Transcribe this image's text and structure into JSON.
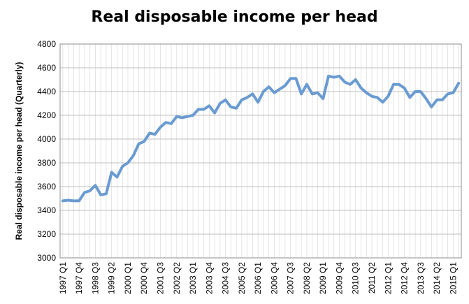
{
  "chart_data": {
    "type": "line",
    "title": "Real disposable income per head",
    "xlabel": "",
    "ylabel": "Real disposable income per head (Quarterly)",
    "ylim": [
      3000,
      4800
    ],
    "yticks": [
      3000,
      3200,
      3400,
      3600,
      3800,
      4000,
      4200,
      4400,
      4600,
      4800
    ],
    "grid": "horizontal and vertical",
    "legend": "none",
    "line_color": "#6a9bd1",
    "x_tick_labels": [
      "1997 Q1",
      "1997 Q4",
      "1998 Q3",
      "1999 Q2",
      "2000 Q1",
      "2000 Q4",
      "2001 Q3",
      "2002 Q2",
      "2003 Q1",
      "2003 Q4",
      "2004 Q3",
      "2005 Q2",
      "2006 Q1",
      "2006 Q4",
      "2007 Q3",
      "2008 Q2",
      "2009 Q1",
      "2009 Q4",
      "2010 Q3",
      "2011 Q2",
      "2012 Q1",
      "2012 Q4",
      "2013 Q3",
      "2014 Q2",
      "2015 Q1"
    ],
    "x": [
      "1997 Q1",
      "1997 Q2",
      "1997 Q3",
      "1997 Q4",
      "1998 Q1",
      "1998 Q2",
      "1998 Q3",
      "1998 Q4",
      "1999 Q1",
      "1999 Q2",
      "1999 Q3",
      "1999 Q4",
      "2000 Q1",
      "2000 Q2",
      "2000 Q3",
      "2000 Q4",
      "2001 Q1",
      "2001 Q2",
      "2001 Q3",
      "2001 Q4",
      "2002 Q1",
      "2002 Q2",
      "2002 Q3",
      "2002 Q4",
      "2003 Q1",
      "2003 Q2",
      "2003 Q3",
      "2003 Q4",
      "2004 Q1",
      "2004 Q2",
      "2004 Q3",
      "2004 Q4",
      "2005 Q1",
      "2005 Q2",
      "2005 Q3",
      "2005 Q4",
      "2006 Q1",
      "2006 Q2",
      "2006 Q3",
      "2006 Q4",
      "2007 Q1",
      "2007 Q2",
      "2007 Q3",
      "2007 Q4",
      "2008 Q1",
      "2008 Q2",
      "2008 Q3",
      "2008 Q4",
      "2009 Q1",
      "2009 Q2",
      "2009 Q3",
      "2009 Q4",
      "2010 Q1",
      "2010 Q2",
      "2010 Q3",
      "2010 Q4",
      "2011 Q1",
      "2011 Q2",
      "2011 Q3",
      "2011 Q4",
      "2012 Q1",
      "2012 Q2",
      "2012 Q3",
      "2012 Q4",
      "2013 Q1",
      "2013 Q2",
      "2013 Q3",
      "2013 Q4",
      "2014 Q1",
      "2014 Q2",
      "2014 Q3",
      "2014 Q4",
      "2015 Q1",
      "2015 Q2"
    ],
    "values": [
      3480,
      3485,
      3480,
      3480,
      3550,
      3565,
      3610,
      3530,
      3540,
      3720,
      3680,
      3770,
      3800,
      3860,
      3960,
      3980,
      4050,
      4040,
      4100,
      4140,
      4130,
      4190,
      4180,
      4190,
      4200,
      4250,
      4250,
      4280,
      4220,
      4300,
      4330,
      4270,
      4260,
      4330,
      4350,
      4380,
      4310,
      4400,
      4440,
      4390,
      4420,
      4450,
      4510,
      4510,
      4380,
      4460,
      4380,
      4390,
      4340,
      4530,
      4520,
      4530,
      4480,
      4460,
      4500,
      4430,
      4390,
      4360,
      4350,
      4310,
      4360,
      4460,
      4460,
      4430,
      4350,
      4400,
      4400,
      4340,
      4270,
      4330,
      4330,
      4380,
      4390,
      4470
    ]
  }
}
